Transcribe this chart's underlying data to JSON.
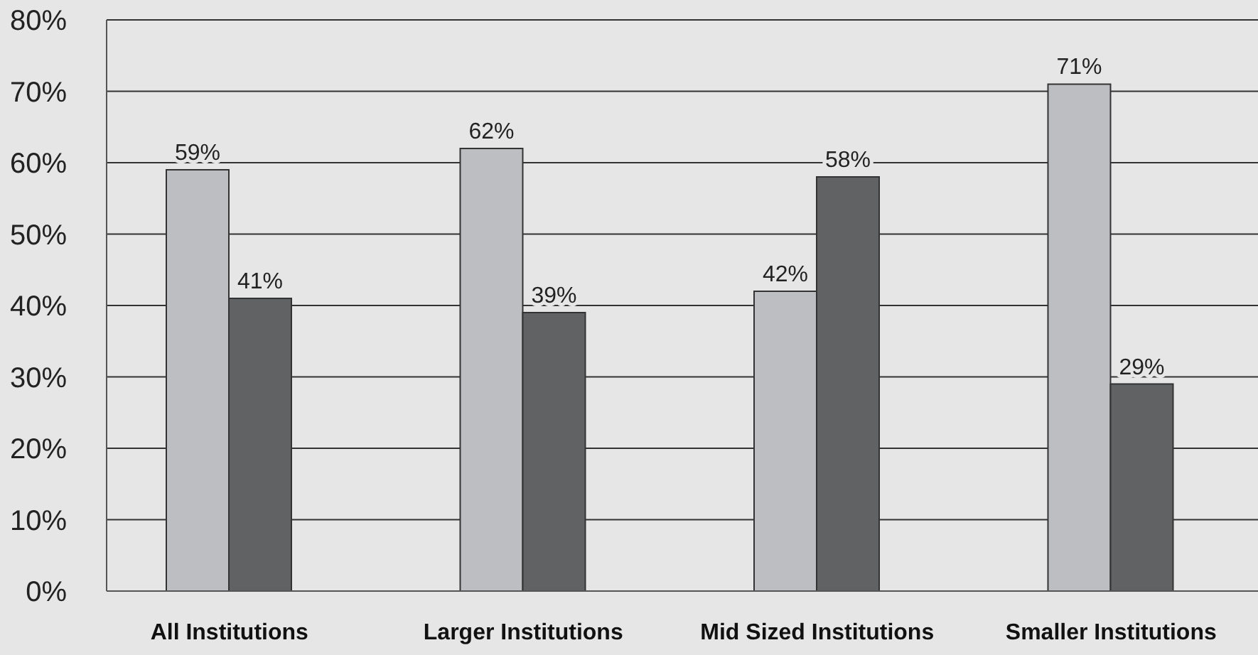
{
  "chart_data": {
    "type": "bar",
    "categories": [
      "All Institutions",
      "Larger Institutions",
      "Mid Sized Institutions",
      "Smaller Institutions"
    ],
    "series": [
      {
        "color": "#bdbec2",
        "values": [
          59,
          62,
          42,
          71
        ],
        "value_labels": [
          "59%",
          "62%",
          "42%",
          "71%"
        ]
      },
      {
        "color": "#616264",
        "values": [
          41,
          39,
          58,
          29
        ],
        "value_labels": [
          "41%",
          "39%",
          "58%",
          "29%"
        ]
      }
    ],
    "ylim": [
      0,
      80
    ],
    "yticks": [
      {
        "value": 0,
        "label": "0%"
      },
      {
        "value": 10,
        "label": "10%"
      },
      {
        "value": 20,
        "label": "20%"
      },
      {
        "value": 30,
        "label": "30%"
      },
      {
        "value": 40,
        "label": "40%"
      },
      {
        "value": 50,
        "label": "50%"
      },
      {
        "value": 60,
        "label": "60%"
      },
      {
        "value": 70,
        "label": "70%"
      },
      {
        "value": 80,
        "label": "80%"
      }
    ],
    "grid": "y"
  }
}
